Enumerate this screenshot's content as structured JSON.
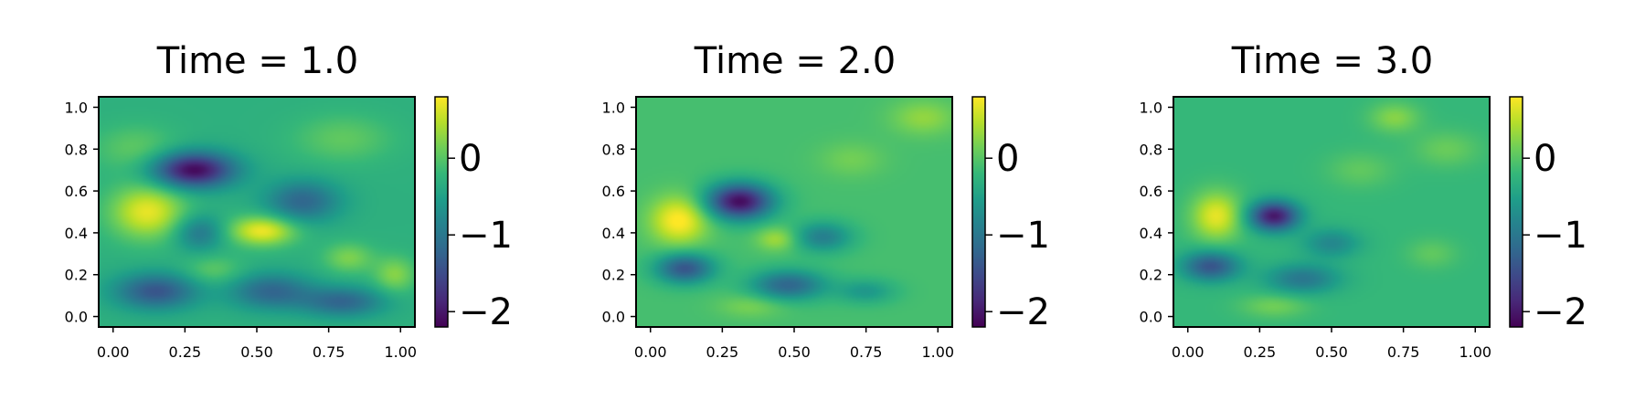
{
  "chart_data": [
    {
      "type": "heatmap",
      "title": "Time = 1.0",
      "xlim": [
        -0.05,
        1.05
      ],
      "ylim": [
        -0.05,
        1.05
      ],
      "x_ticks": [
        "0.00",
        "0.25",
        "0.50",
        "0.75",
        "1.00"
      ],
      "y_ticks": [
        "0.0",
        "0.2",
        "0.4",
        "0.6",
        "0.8",
        "1.0"
      ],
      "colorbar": {
        "colormap": "viridis",
        "range": [
          -2.2,
          0.8
        ],
        "ticks": [
          "0",
          "−1",
          "−2"
        ],
        "tick_values": [
          0,
          -1,
          -2
        ]
      },
      "base": -0.3,
      "blobs": [
        {
          "x": 0.12,
          "y": 0.5,
          "amp": 1.0,
          "sx": 0.09,
          "sy": 0.09
        },
        {
          "x": 0.52,
          "y": 0.41,
          "amp": 1.05,
          "sx": 0.08,
          "sy": 0.05
        },
        {
          "x": 0.28,
          "y": 0.7,
          "amp": -1.85,
          "sx": 0.1,
          "sy": 0.06
        },
        {
          "x": 0.66,
          "y": 0.55,
          "amp": -0.9,
          "sx": 0.09,
          "sy": 0.07
        },
        {
          "x": 0.15,
          "y": 0.12,
          "amp": -1.1,
          "sx": 0.1,
          "sy": 0.06
        },
        {
          "x": 0.55,
          "y": 0.12,
          "amp": -0.9,
          "sx": 0.1,
          "sy": 0.06
        },
        {
          "x": 0.8,
          "y": 0.07,
          "amp": -0.9,
          "sx": 0.1,
          "sy": 0.05
        },
        {
          "x": 0.3,
          "y": 0.4,
          "amp": -0.7,
          "sx": 0.06,
          "sy": 0.06
        },
        {
          "x": 0.82,
          "y": 0.28,
          "amp": 0.5,
          "sx": 0.06,
          "sy": 0.05
        },
        {
          "x": 0.35,
          "y": 0.22,
          "amp": 0.35,
          "sx": 0.07,
          "sy": 0.05
        },
        {
          "x": 0.98,
          "y": 0.2,
          "amp": 0.55,
          "sx": 0.05,
          "sy": 0.06
        },
        {
          "x": 0.08,
          "y": 0.8,
          "amp": 0.35,
          "sx": 0.1,
          "sy": 0.08
        },
        {
          "x": 0.8,
          "y": 0.85,
          "amp": 0.35,
          "sx": 0.12,
          "sy": 0.08
        }
      ]
    },
    {
      "type": "heatmap",
      "title": "Time = 2.0",
      "xlim": [
        -0.05,
        1.05
      ],
      "ylim": [
        -0.05,
        1.05
      ],
      "x_ticks": [
        "0.00",
        "0.25",
        "0.50",
        "0.75",
        "1.00"
      ],
      "y_ticks": [
        "0.0",
        "0.2",
        "0.4",
        "0.6",
        "0.8",
        "1.0"
      ],
      "colorbar": {
        "colormap": "viridis",
        "range": [
          -2.2,
          0.8
        ],
        "ticks": [
          "0",
          "−1",
          "−2"
        ],
        "tick_values": [
          0,
          -1,
          -2
        ]
      },
      "base": -0.1,
      "blobs": [
        {
          "x": 0.1,
          "y": 0.46,
          "amp": 0.95,
          "sx": 0.07,
          "sy": 0.08
        },
        {
          "x": 0.44,
          "y": 0.37,
          "amp": 0.5,
          "sx": 0.05,
          "sy": 0.04
        },
        {
          "x": 0.31,
          "y": 0.55,
          "amp": -2.0,
          "sx": 0.08,
          "sy": 0.06
        },
        {
          "x": 0.12,
          "y": 0.23,
          "amp": -1.3,
          "sx": 0.07,
          "sy": 0.05
        },
        {
          "x": 0.48,
          "y": 0.15,
          "amp": -1.1,
          "sx": 0.09,
          "sy": 0.05
        },
        {
          "x": 0.6,
          "y": 0.38,
          "amp": -0.8,
          "sx": 0.07,
          "sy": 0.05
        },
        {
          "x": 0.75,
          "y": 0.12,
          "amp": -0.5,
          "sx": 0.07,
          "sy": 0.04
        },
        {
          "x": 0.95,
          "y": 0.95,
          "amp": 0.4,
          "sx": 0.08,
          "sy": 0.06
        },
        {
          "x": 0.7,
          "y": 0.75,
          "amp": 0.25,
          "sx": 0.08,
          "sy": 0.06
        },
        {
          "x": 0.35,
          "y": 0.05,
          "amp": 0.3,
          "sx": 0.08,
          "sy": 0.04
        }
      ]
    },
    {
      "type": "heatmap",
      "title": "Time = 3.0",
      "xlim": [
        -0.05,
        1.05
      ],
      "ylim": [
        -0.05,
        1.05
      ],
      "x_ticks": [
        "0.00",
        "0.25",
        "0.50",
        "0.75",
        "1.00"
      ],
      "y_ticks": [
        "0.0",
        "0.2",
        "0.4",
        "0.6",
        "0.8",
        "1.0"
      ],
      "colorbar": {
        "colormap": "viridis",
        "range": [
          -2.2,
          0.8
        ],
        "ticks": [
          "0",
          "−1",
          "−2"
        ],
        "tick_values": [
          0,
          -1,
          -2
        ]
      },
      "base": -0.2,
      "blobs": [
        {
          "x": 0.1,
          "y": 0.48,
          "amp": 0.9,
          "sx": 0.06,
          "sy": 0.08
        },
        {
          "x": 0.3,
          "y": 0.48,
          "amp": -1.8,
          "sx": 0.06,
          "sy": 0.05
        },
        {
          "x": 0.08,
          "y": 0.24,
          "amp": -1.2,
          "sx": 0.07,
          "sy": 0.05
        },
        {
          "x": 0.4,
          "y": 0.18,
          "amp": -0.8,
          "sx": 0.09,
          "sy": 0.05
        },
        {
          "x": 0.5,
          "y": 0.35,
          "amp": -0.6,
          "sx": 0.07,
          "sy": 0.05
        },
        {
          "x": 0.72,
          "y": 0.95,
          "amp": 0.45,
          "sx": 0.06,
          "sy": 0.05
        },
        {
          "x": 0.9,
          "y": 0.8,
          "amp": 0.3,
          "sx": 0.08,
          "sy": 0.06
        },
        {
          "x": 0.6,
          "y": 0.7,
          "amp": 0.25,
          "sx": 0.08,
          "sy": 0.06
        },
        {
          "x": 0.3,
          "y": 0.05,
          "amp": 0.35,
          "sx": 0.08,
          "sy": 0.04
        },
        {
          "x": 0.85,
          "y": 0.3,
          "amp": 0.25,
          "sx": 0.06,
          "sy": 0.05
        }
      ]
    }
  ]
}
